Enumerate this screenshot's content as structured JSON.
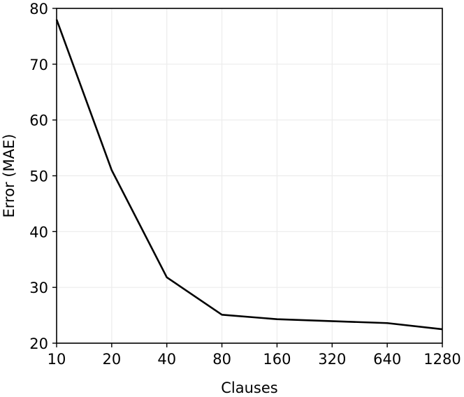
{
  "chart_data": {
    "type": "line",
    "title": "",
    "xlabel": "Clauses",
    "ylabel": "Error (MAE)",
    "x_scale": "log2",
    "x": [
      10,
      20,
      40,
      80,
      160,
      320,
      640,
      1280
    ],
    "x_tick_labels": [
      "10",
      "20",
      "40",
      "80",
      "160",
      "320",
      "640",
      "1280"
    ],
    "ylim": [
      20,
      80
    ],
    "y_ticks": [
      20,
      30,
      40,
      50,
      60,
      70,
      80
    ],
    "y_tick_labels": [
      "20",
      "30",
      "40",
      "50",
      "60",
      "70",
      "80"
    ],
    "grid": true,
    "legend": "none",
    "series": [
      {
        "color": "#000000",
        "values": [
          78.0,
          51.0,
          31.8,
          25.1,
          24.3,
          null,
          23.6,
          22.5
        ]
      }
    ]
  }
}
